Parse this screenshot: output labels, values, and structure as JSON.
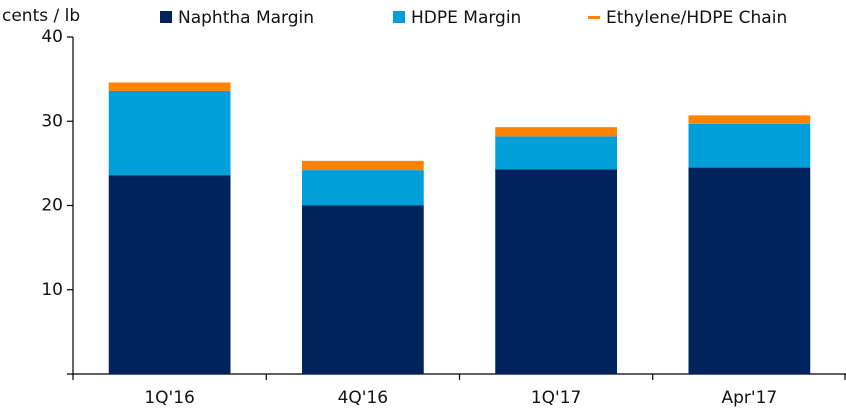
{
  "chart_data": {
    "type": "stacked_bar",
    "y_label": "cents / lb",
    "categories": [
      "1Q'16",
      "4Q'16",
      "1Q'17",
      "Apr'17"
    ],
    "series": [
      {
        "name": "Naphtha Margin",
        "color": "#00235e",
        "marker": "square",
        "values": [
          23.6,
          20.0,
          24.3,
          24.5
        ]
      },
      {
        "name": "HDPE Margin",
        "color": "#009fda",
        "marker": "square",
        "values": [
          10.0,
          4.2,
          3.9,
          5.2
        ]
      },
      {
        "name": "Ethylene/HDPE Chain",
        "color": "#ff8200",
        "marker": "line",
        "values": [
          1.0,
          1.1,
          1.1,
          1.0
        ]
      }
    ],
    "ylim": [
      0,
      40
    ],
    "yticks": [
      10,
      20,
      30,
      40
    ],
    "grid": false,
    "legend": "top"
  }
}
